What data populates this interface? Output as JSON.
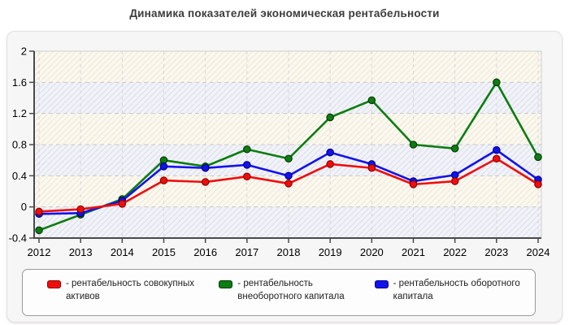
{
  "title": "Динамика показателей экономическая рентабельности",
  "legend": {
    "items": [
      {
        "label": "- рентабельность совокупных активов",
        "color": "#ee0e0e",
        "border": "#8f0000"
      },
      {
        "label": "- рентабельность внеоборотного капитала",
        "color": "#0d7c12",
        "border": "#043d06"
      },
      {
        "label": "- рентабельность оборотного капитала",
        "color": "#1212ee",
        "border": "#000080"
      }
    ]
  },
  "chart_data": {
    "type": "line",
    "title": "Динамика показателей экономическая рентабельности",
    "x": [
      "2012",
      "2013",
      "2014",
      "2015",
      "2016",
      "2017",
      "2018",
      "2019",
      "2020",
      "2021",
      "2022",
      "2023",
      "2024"
    ],
    "series": [
      {
        "name": "рентабельность внеоборотного капитала",
        "color": "#0d7c12",
        "marker_border": "#043d06",
        "values": [
          -0.3,
          -0.1,
          0.1,
          0.6,
          0.52,
          0.74,
          0.62,
          1.15,
          1.37,
          0.8,
          0.75,
          1.6,
          0.64
        ]
      },
      {
        "name": "рентабельность оборотного капитала",
        "color": "#1212ee",
        "marker_border": "#000080",
        "values": [
          -0.09,
          -0.08,
          0.08,
          0.52,
          0.5,
          0.54,
          0.4,
          0.7,
          0.55,
          0.33,
          0.41,
          0.73,
          0.35
        ]
      },
      {
        "name": "рентабельность совокупных активов",
        "color": "#ee0e0e",
        "marker_border": "#8f0000",
        "values": [
          -0.06,
          -0.03,
          0.04,
          0.34,
          0.32,
          0.39,
          0.3,
          0.55,
          0.5,
          0.29,
          0.33,
          0.62,
          0.29
        ]
      }
    ],
    "ylim": [
      -0.4,
      2.0
    ],
    "yticks": [
      2,
      1.6,
      1.2,
      0.8,
      0.4,
      0,
      -0.4
    ],
    "ytick_labels": [
      "2",
      "1.6",
      "1.2",
      "0.8",
      "0.4",
      "0",
      "-0.4"
    ],
    "grid": "dashed",
    "legend_position": "bottom",
    "plot_bg": {
      "band_a": "#fbf9ef",
      "band_a_hatch": "rgba(200,175,150,0.28)",
      "band_b": "#f2f3f8",
      "band_b_hatch": "rgba(160,170,205,0.30)",
      "grid_color": "#c9c9c9",
      "axis_color": "#4a4a4a",
      "frame_color": "#cfcfcf"
    }
  }
}
